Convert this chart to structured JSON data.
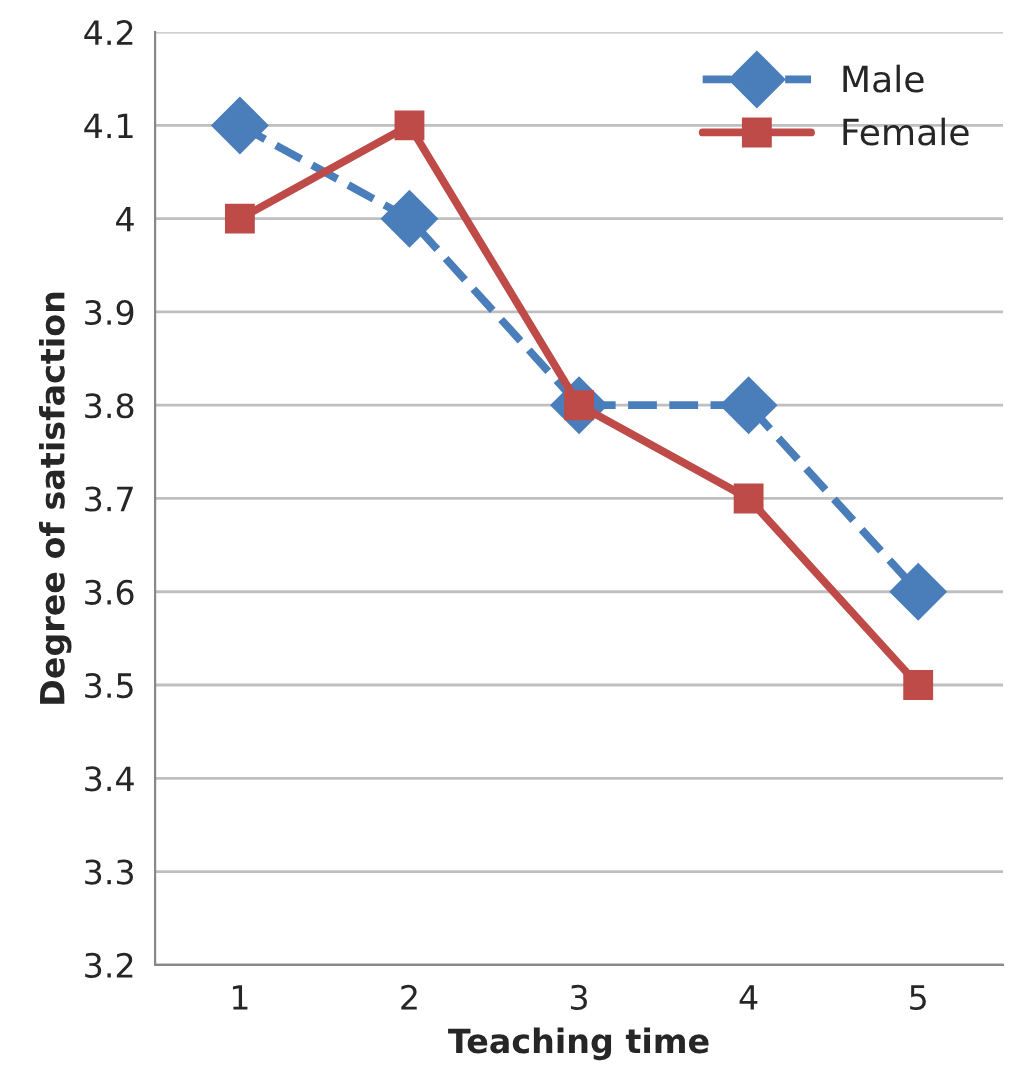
{
  "chart_data": {
    "type": "line",
    "xlabel": "Teaching time",
    "ylabel": "Degree of satisfaction",
    "categories": [
      "1",
      "2",
      "3",
      "4",
      "5"
    ],
    "series": [
      {
        "name": "Male",
        "color": "#4a7ebb",
        "values": [
          4.1,
          4.0,
          3.8,
          3.8,
          3.6
        ],
        "marker": "diamond",
        "line_style": "dashed"
      },
      {
        "name": "Female",
        "color": "#be4b48",
        "values": [
          4.0,
          4.1,
          3.8,
          3.7,
          3.5
        ],
        "marker": "square",
        "line_style": "solid"
      }
    ],
    "ylim": [
      3.2,
      4.2
    ],
    "yticks": [
      3.2,
      3.3,
      3.4,
      3.5,
      3.6,
      3.7,
      3.8,
      3.9,
      4,
      4.1,
      4.2
    ],
    "grid": "y",
    "legend": "top right"
  }
}
